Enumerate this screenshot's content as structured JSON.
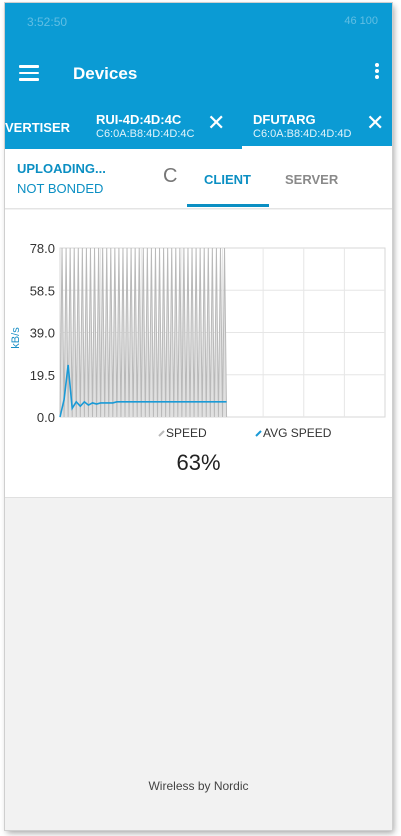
{
  "status_bar": {
    "time": "3:52:50",
    "right": "46 100"
  },
  "app_bar": {
    "title": "Devices"
  },
  "device_tabs": [
    {
      "name": "VERTISER",
      "address": "",
      "selected": false
    },
    {
      "name": "RUI-4D:4D:4C",
      "address": "C6:0A:B8:4D:4D:4C",
      "selected": false
    },
    {
      "name": "DFUTARG",
      "address": "C6:0A:B8:4D:4D:4D",
      "selected": true
    }
  ],
  "dfu": {
    "state": "UPLOADING...",
    "bond": "NOT BONDED",
    "tabs": {
      "client": "CLIENT",
      "server": "SERVER"
    },
    "progress_text": "63%",
    "progress": 0.63
  },
  "chart_data": {
    "type": "line",
    "ylabel": "kB/s",
    "yticks": [
      "78.0",
      "58.5",
      "39.0",
      "19.5",
      "0.0"
    ],
    "ylim": [
      0,
      78
    ],
    "grid": true,
    "legend": {
      "placement": "bottom",
      "entries": [
        "SPEED",
        "AVG SPEED"
      ]
    },
    "series": [
      {
        "name": "SPEED",
        "color": "#cfcfcf",
        "x": [
          0,
          1,
          2,
          3,
          4,
          5,
          6,
          7,
          8,
          9,
          10,
          11,
          12,
          13,
          14,
          15,
          16,
          17,
          18,
          19,
          20,
          21,
          22,
          23,
          24,
          25,
          26,
          27,
          28,
          29,
          30,
          31,
          32,
          33,
          34,
          35,
          36,
          37,
          38,
          39,
          40,
          41,
          42,
          43,
          44,
          45,
          46,
          47,
          48,
          49,
          50,
          51,
          52,
          53,
          54,
          55,
          56,
          57,
          58,
          59,
          60,
          61,
          62,
          63,
          64,
          65,
          66,
          67,
          68,
          69,
          70,
          71,
          72,
          73,
          74,
          75,
          76,
          77,
          78,
          79,
          80,
          81,
          82
        ],
        "values": [
          0,
          78,
          0,
          78,
          0,
          78,
          0,
          78,
          0,
          78,
          0,
          78,
          0,
          78,
          0,
          78,
          0,
          78,
          0,
          78,
          0,
          78,
          0,
          78,
          0,
          78,
          0,
          78,
          0,
          78,
          0,
          78,
          0,
          78,
          0,
          78,
          0,
          78,
          0,
          78,
          0,
          78,
          0,
          78,
          0,
          78,
          0,
          78,
          0,
          78,
          0,
          78,
          0,
          78,
          0,
          78,
          0,
          78,
          0,
          78,
          0,
          78,
          0,
          78,
          0,
          78,
          0,
          78,
          0,
          78,
          0,
          78,
          0,
          78,
          0,
          78,
          0,
          78,
          0,
          78,
          0,
          78,
          0
        ]
      },
      {
        "name": "AVG SPEED",
        "color": "#1a9ad6",
        "x": [
          0,
          2,
          4,
          6,
          8,
          10,
          12,
          14,
          16,
          18,
          20,
          22,
          24,
          26,
          28,
          30,
          32,
          34,
          36,
          38,
          40,
          42,
          44,
          46,
          48,
          50,
          52,
          54,
          56,
          58,
          60,
          62,
          64,
          66,
          68,
          70,
          72,
          74,
          76,
          78,
          80,
          82
        ],
        "values": [
          0,
          8,
          24,
          4,
          7,
          5,
          7,
          5.5,
          6.5,
          6,
          6.5,
          6.5,
          6.5,
          6.5,
          7,
          7,
          7,
          7,
          7,
          7,
          7,
          7,
          7,
          7,
          7,
          7,
          7,
          7,
          7,
          7,
          7,
          7,
          7,
          7,
          7,
          7,
          7,
          7,
          7,
          7,
          7,
          7
        ]
      }
    ]
  },
  "footer": {
    "text": "Wireless by Nordic"
  }
}
